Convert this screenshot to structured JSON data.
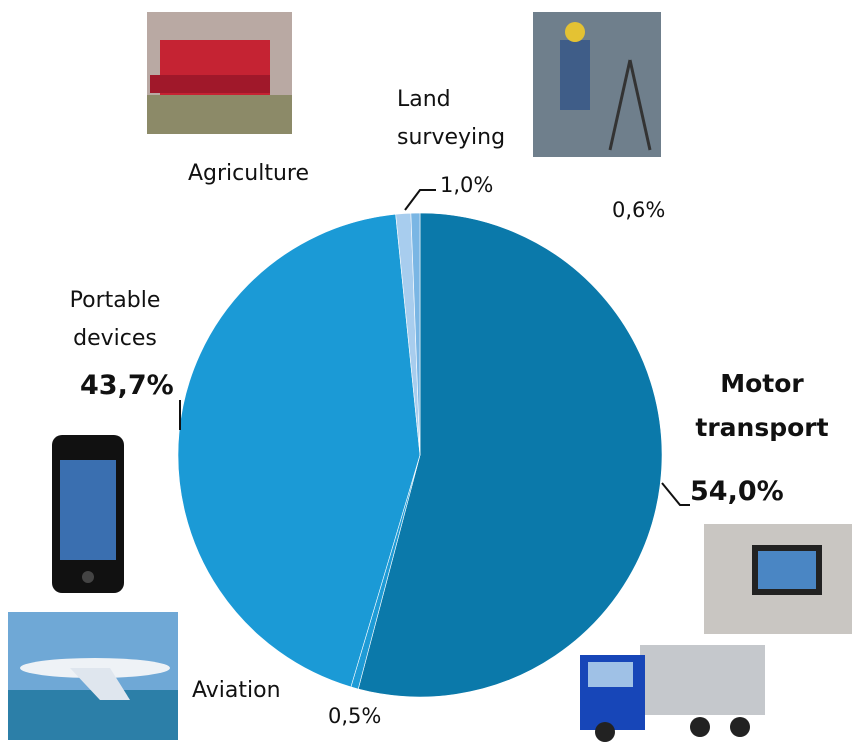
{
  "chart_data": {
    "type": "pie",
    "categories": [
      "Motor transport",
      "Aviation",
      "Portable devices",
      "Agriculture",
      "Land surveying"
    ],
    "values": [
      54.0,
      0.5,
      43.7,
      1.0,
      0.6
    ],
    "value_labels": [
      "54,0%",
      "0,5%",
      "43,7%",
      "1,0%",
      "0,6%"
    ],
    "colors": [
      "#0b79aa",
      "#1e9bd6",
      "#1b9ad6",
      "#a8cdee",
      "#7ab6e4"
    ]
  }
}
